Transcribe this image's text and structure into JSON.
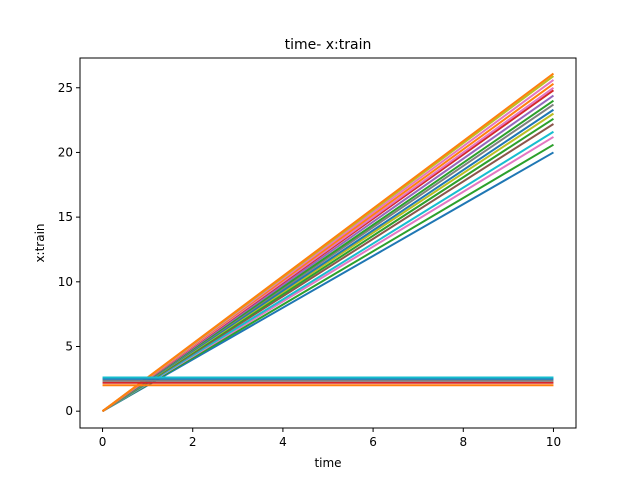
{
  "chart_data": {
    "type": "line",
    "title": "time- x:train",
    "xlabel": "time",
    "ylabel": "x:train",
    "xlim": [
      -0.5,
      10.5
    ],
    "ylim": [
      -1.3,
      27.3
    ],
    "xticks": [
      0,
      2,
      4,
      6,
      8,
      10
    ],
    "yticks": [
      0,
      5,
      10,
      15,
      20,
      25
    ],
    "grid": false,
    "legend": "none",
    "x": [
      0,
      10
    ],
    "series_groups": [
      {
        "description": "rising lines",
        "series": [
          {
            "values": [
              0,
              20.0
            ],
            "color": "#1f77b4"
          },
          {
            "values": [
              0,
              20.6
            ],
            "color": "#2ca02c"
          },
          {
            "values": [
              0,
              21.2
            ],
            "color": "#e377c2"
          },
          {
            "values": [
              0,
              21.6
            ],
            "color": "#17becf"
          },
          {
            "values": [
              0,
              22.2
            ],
            "color": "#8c564b"
          },
          {
            "values": [
              0,
              22.6
            ],
            "color": "#2ca02c"
          },
          {
            "values": [
              0,
              23.0
            ],
            "color": "#bcbd22"
          },
          {
            "values": [
              0,
              23.3
            ],
            "color": "#1f77b4"
          },
          {
            "values": [
              0,
              23.7
            ],
            "color": "#7f7f7f"
          },
          {
            "values": [
              0,
              24.0
            ],
            "color": "#2ca02c"
          },
          {
            "values": [
              0,
              24.4
            ],
            "color": "#9467bd"
          },
          {
            "values": [
              0,
              24.8
            ],
            "color": "#d62728"
          },
          {
            "values": [
              0,
              25.0
            ],
            "color": "#e377c2"
          },
          {
            "values": [
              0,
              25.3
            ],
            "color": "#ff7f0e"
          },
          {
            "values": [
              0,
              25.6
            ],
            "color": "#e377c2"
          },
          {
            "values": [
              0,
              25.9
            ],
            "color": "#bcbd22"
          },
          {
            "values": [
              0,
              26.1
            ],
            "color": "#ff7f0e"
          }
        ]
      },
      {
        "description": "flat lines",
        "series": [
          {
            "values": [
              2.0,
              2.0
            ],
            "color": "#ff7f0e"
          },
          {
            "values": [
              2.2,
              2.2
            ],
            "color": "#d62728"
          },
          {
            "values": [
              2.35,
              2.35
            ],
            "color": "#7f7f7f"
          },
          {
            "values": [
              2.5,
              2.5
            ],
            "color": "#1f77b4"
          },
          {
            "values": [
              2.6,
              2.6
            ],
            "color": "#17becf"
          }
        ]
      }
    ]
  }
}
